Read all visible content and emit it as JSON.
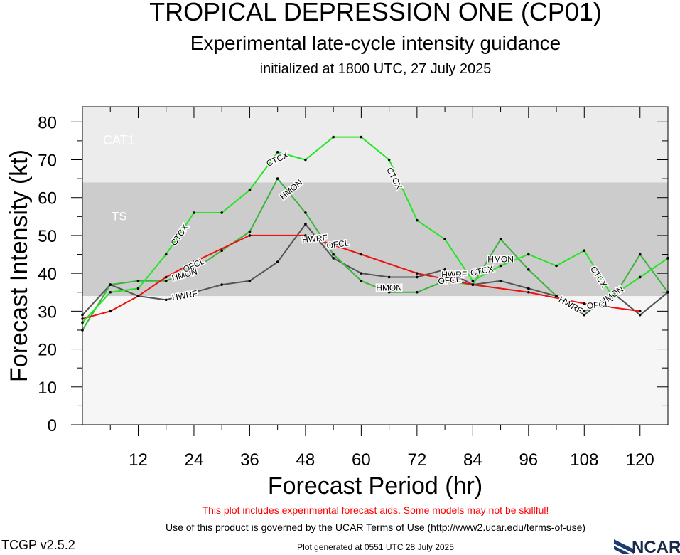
{
  "header": {
    "title": "TROPICAL DEPRESSION ONE (CP01)",
    "subtitle": "Experimental late-cycle intensity guidance",
    "init": "initialized at 1800 UTC, 27 July 2025"
  },
  "footer": {
    "disclaimer": "This plot includes experimental forecast aids. Some models may not be skillful!",
    "terms": "Use of this product is governed by the UCAR Terms of Use (http://www2.ucar.edu/terms-of-use)",
    "generated": "Plot generated at 0551 UTC   28 July 2025",
    "version": "TCGP v2.5.2",
    "logo_text": "NCAR"
  },
  "colors": {
    "CTCX": "#22e622",
    "HMON": "#3cb43c",
    "OFCL": "#ee1111",
    "HWRF": "#555555",
    "ts_band": "#cccccc",
    "cat1_band": "#ececec",
    "low_band": "#f6f6f6",
    "disclaimer": "#ff0000"
  },
  "chart_data": {
    "type": "line",
    "xlabel": "Forecast Period (hr)",
    "ylabel": "Forecast Intensity (kt)",
    "xlim": [
      0,
      126
    ],
    "ylim": [
      0,
      84
    ],
    "xticks": [
      12,
      24,
      36,
      48,
      60,
      72,
      84,
      96,
      108,
      120
    ],
    "yticks": [
      0,
      10,
      20,
      30,
      40,
      50,
      60,
      70,
      80
    ],
    "bands": [
      {
        "label": "TS",
        "from": 34,
        "to": 64
      },
      {
        "label": "CAT1",
        "from": 64,
        "to": 84
      }
    ],
    "series": [
      {
        "name": "CTCX",
        "x": [
          0,
          6,
          12,
          18,
          24,
          30,
          36,
          42,
          48,
          54,
          60,
          66,
          72,
          78,
          84,
          90,
          96,
          102,
          108,
          114,
          120,
          126
        ],
        "y": [
          27,
          35,
          36,
          45,
          56,
          56,
          62,
          72,
          70,
          76,
          76,
          70,
          54,
          49,
          38,
          42,
          45,
          42,
          46,
          34,
          39,
          44
        ],
        "labels": [
          {
            "x": 21,
            "y": 50,
            "angle": -55
          },
          {
            "x": 42,
            "y": 70,
            "angle": -25
          },
          {
            "x": 67,
            "y": 65,
            "angle": 62
          },
          {
            "x": 86,
            "y": 40.5,
            "angle": -12
          },
          {
            "x": 111,
            "y": 39,
            "angle": 58
          }
        ]
      },
      {
        "name": "HMON",
        "x": [
          0,
          6,
          12,
          18,
          24,
          30,
          36,
          42,
          48,
          54,
          60,
          66,
          72,
          78,
          84,
          90,
          96,
          102,
          108,
          114,
          120,
          126
        ],
        "y": [
          25,
          37,
          38,
          38,
          41,
          46,
          51,
          65,
          56,
          45,
          38,
          35,
          35,
          38,
          37,
          49,
          41,
          34,
          30,
          33,
          45,
          35
        ],
        "labels": [
          {
            "x": 22,
            "y": 39.5,
            "angle": -15
          },
          {
            "x": 45,
            "y": 62,
            "angle": -40
          },
          {
            "x": 66,
            "y": 36,
            "angle": 0
          },
          {
            "x": 90,
            "y": 43.5,
            "angle": 0
          },
          {
            "x": 114,
            "y": 34,
            "angle": -35
          }
        ]
      },
      {
        "name": "OFCL",
        "x": [
          0,
          6,
          12,
          18,
          24,
          36,
          48,
          60,
          72,
          84,
          96,
          108,
          120
        ],
        "y": [
          28,
          30,
          34,
          39,
          43,
          50,
          50,
          45,
          40,
          37,
          35,
          32,
          30
        ],
        "labels": [
          {
            "x": 24,
            "y": 42,
            "angle": -25
          },
          {
            "x": 55,
            "y": 47.5,
            "angle": -8
          },
          {
            "x": 79,
            "y": 38,
            "angle": -5
          },
          {
            "x": 111,
            "y": 31.5,
            "angle": -5
          }
        ]
      },
      {
        "name": "HWRF",
        "x": [
          0,
          6,
          12,
          18,
          24,
          30,
          36,
          42,
          48,
          54,
          60,
          66,
          72,
          78,
          84,
          90,
          96,
          102,
          108,
          114,
          120,
          126
        ],
        "y": [
          29,
          37,
          34,
          33,
          35,
          37,
          38,
          43,
          53,
          44,
          40,
          39,
          39,
          41,
          37,
          38,
          36,
          34,
          29,
          35,
          29,
          35
        ],
        "labels": [
          {
            "x": 22,
            "y": 34,
            "angle": -10
          },
          {
            "x": 50,
            "y": 49,
            "angle": -5
          },
          {
            "x": 80,
            "y": 39.5,
            "angle": 0
          },
          {
            "x": 105,
            "y": 31.5,
            "angle": 30
          }
        ]
      }
    ]
  }
}
